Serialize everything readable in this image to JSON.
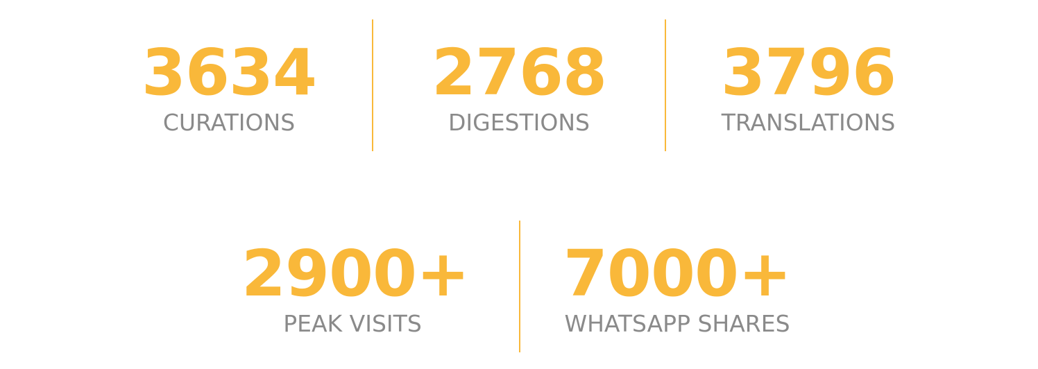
{
  "stats_row_1": [
    {
      "value": "3634",
      "label": "CURATIONS"
    },
    {
      "value": "2768",
      "label": "DIGESTIONS"
    },
    {
      "value": "3796",
      "label": "TRANSLATIONS"
    }
  ],
  "stats_row_2": [
    {
      "value": "2900+",
      "label": "PEAK VISITS"
    },
    {
      "value": "7000+",
      "label": "WHATSAPP SHARES"
    }
  ],
  "colors": {
    "accent": "#f9b83a",
    "label": "#8a8a8a",
    "background": "#ffffff"
  }
}
